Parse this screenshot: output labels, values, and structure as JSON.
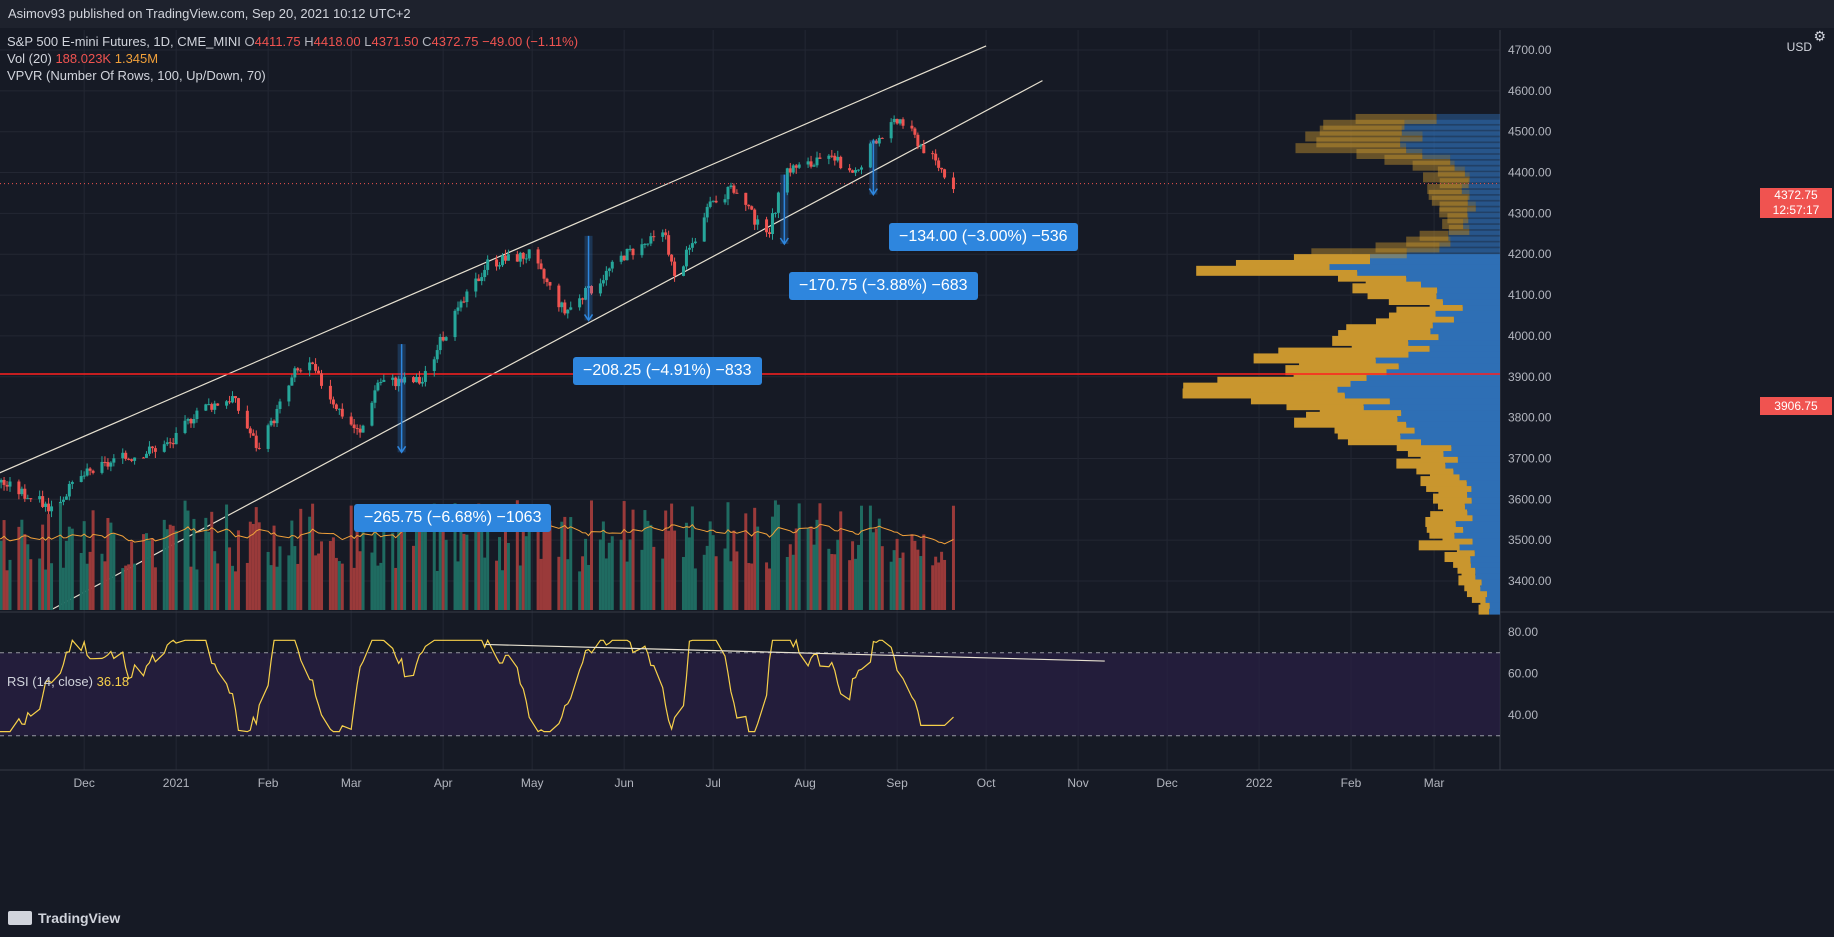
{
  "credit": "Asimov93 published on TradingView.com, Sep 20, 2021 10:12 UTC+2",
  "legend": {
    "symbol": "S&P 500 E-mini Futures, 1D, CME_MINI",
    "o_label": "O",
    "o": "4411.75",
    "h_label": "H",
    "h": "4418.00",
    "l_label": "L",
    "l": "4371.50",
    "c_label": "C",
    "c": "4372.75",
    "change": "−49.00 (−1.11%)",
    "vol_label": "Vol (20)",
    "vol_value": "188.023K",
    "vol_ma": "1.345M",
    "vpvr_label": "VPVR (Number Of Rows, 100, Up/Down, 70)",
    "rsi_label": "RSI (14, close)",
    "rsi_value": "36.18"
  },
  "currency": "USD",
  "gear_icon": "gear-icon",
  "brand": "TradingView",
  "price_tags": {
    "last_price": "4372.75",
    "countdown": "12:57:17",
    "level": "3906.75"
  },
  "annotations": [
    {
      "text": "−265.75 (−6.68%) −1063"
    },
    {
      "text": "−208.25 (−4.91%) −833"
    },
    {
      "text": "−170.75 (−3.88%) −683"
    },
    {
      "text": "−134.00 (−3.00%) −536"
    }
  ],
  "colors": {
    "up": "#26a69a",
    "down": "#ef5350",
    "bg": "#161a25",
    "channel": "#e6e0d0",
    "level": "#ff1f1f",
    "rsi": "#f7d14a",
    "rsi_band": "#2a1f45",
    "vp_up": "#2962ff",
    "vp_down": "#e0a020"
  },
  "chart_data": {
    "type": "candlestick",
    "title": "S&P 500 E-mini Futures, 1D, CME_MINI",
    "y_range": [
      3300,
      4750
    ],
    "y_ticks": [
      "4700.00",
      "4600.00",
      "4500.00",
      "4400.00",
      "4300.00",
      "4200.00",
      "4100.00",
      "4000.00",
      "3900.00",
      "3800.00",
      "3700.00",
      "3600.00",
      "3500.00",
      "3400.00"
    ],
    "x_ticks": [
      "Dec",
      "2021",
      "Feb",
      "Mar",
      "Apr",
      "May",
      "Jun",
      "Jul",
      "Aug",
      "Sep",
      "Oct",
      "Nov",
      "Dec",
      "2022",
      "Feb",
      "Mar"
    ],
    "rsi_ticks": [
      "80.00",
      "60.00",
      "40.00"
    ],
    "rsi_range": [
      25,
      85
    ],
    "rsi_bands": [
      70,
      30
    ],
    "horizontal_level": 3906.75,
    "last_price": 4372.75,
    "channel_upper": [
      [
        "2020-11-01",
        3660
      ],
      [
        "2021-10-01",
        4710
      ]
    ],
    "channel_lower": [
      [
        "2020-11-20",
        3330
      ],
      [
        "2021-10-20",
        4625
      ]
    ],
    "rsi_trendline": [
      [
        "2021-04-15",
        74
      ],
      [
        "2021-11-10",
        66
      ]
    ],
    "price_path": [
      [
        "2020-11-01",
        3650
      ],
      [
        "2020-11-20",
        3580
      ],
      [
        "2020-12-01",
        3660
      ],
      [
        "2020-12-10",
        3690
      ],
      [
        "2020-12-31",
        3740
      ],
      [
        "2021-01-08",
        3820
      ],
      [
        "2021-01-20",
        3850
      ],
      [
        "2021-01-29",
        3720
      ],
      [
        "2021-02-10",
        3910
      ],
      [
        "2021-02-15",
        3930
      ],
      [
        "2021-02-25",
        3820
      ],
      [
        "2021-03-04",
        3760
      ],
      [
        "2021-03-10",
        3890
      ],
      [
        "2021-03-25",
        3890
      ],
      [
        "2021-04-01",
        4000
      ],
      [
        "2021-04-16",
        4180
      ],
      [
        "2021-04-30",
        4200
      ],
      [
        "2021-05-12",
        4060
      ],
      [
        "2021-05-20",
        4110
      ],
      [
        "2021-06-01",
        4200
      ],
      [
        "2021-06-15",
        4250
      ],
      [
        "2021-06-18",
        4140
      ],
      [
        "2021-07-01",
        4330
      ],
      [
        "2021-07-08",
        4360
      ],
      [
        "2021-07-19",
        4240
      ],
      [
        "2021-07-26",
        4410
      ],
      [
        "2021-08-10",
        4430
      ],
      [
        "2021-08-19",
        4400
      ],
      [
        "2021-08-24",
        4480
      ],
      [
        "2021-09-02",
        4530
      ],
      [
        "2021-09-10",
        4460
      ],
      [
        "2021-09-17",
        4400
      ],
      [
        "2021-09-20",
        4372.75
      ]
    ],
    "drawdowns": [
      {
        "label": "−265.75 (−6.68%) −1063",
        "from": [
          "2021-03-18",
          3980
        ],
        "to": [
          "2021-03-18",
          3715
        ]
      },
      {
        "label": "−208.25 (−4.91%) −833",
        "from": [
          "2021-05-20",
          4245
        ],
        "to": [
          "2021-05-20",
          4038
        ]
      },
      {
        "label": "−170.75 (−3.88%) −683",
        "from": [
          "2021-07-25",
          4395
        ],
        "to": [
          "2021-07-25",
          4225
        ]
      },
      {
        "label": "−134.00 (−3.00%) −536",
        "from": [
          "2021-08-24",
          4480
        ],
        "to": [
          "2021-08-24",
          4346
        ]
      }
    ]
  }
}
